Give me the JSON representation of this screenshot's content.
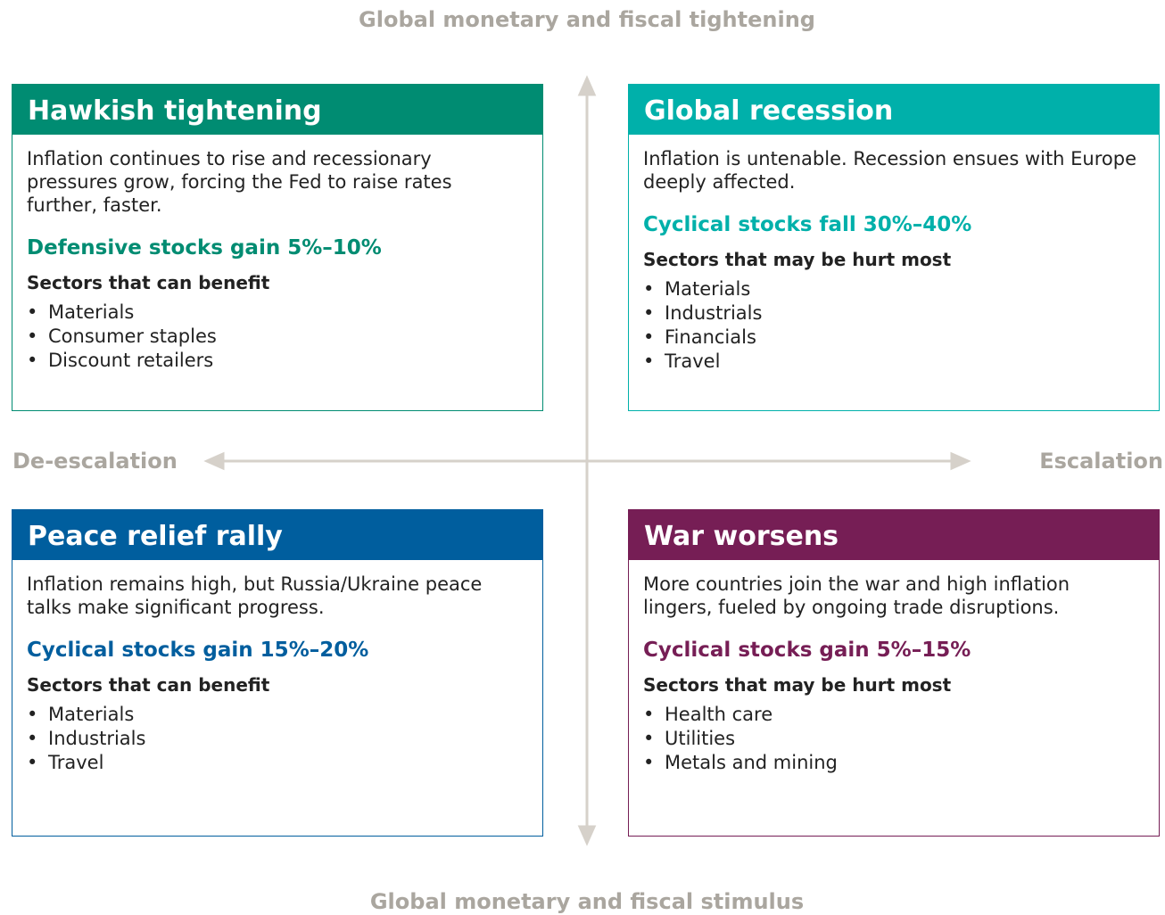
{
  "axes": {
    "top": "Global monetary and fiscal tightening",
    "bottom": "Global monetary and fiscal stimulus",
    "left": "De-escalation",
    "right": "Escalation"
  },
  "quadrants": [
    {
      "title": "Hawkish tightening",
      "description": "Inflation continues to rise and recessionary pressures grow, forcing the Fed to raise rates further, faster.",
      "outcome": "Defensive stocks gain 5%–10%",
      "sectors_label": "Sectors that can benefit",
      "sectors": [
        "Materials",
        "Consumer staples",
        "Discount retailers"
      ]
    },
    {
      "title": "Global recession",
      "description": "Inflation is untenable. Recession ensues with Europe deeply affected.",
      "outcome": "Cyclical stocks fall 30%–40%",
      "sectors_label": "Sectors that may be hurt most",
      "sectors": [
        "Materials",
        "Industrials",
        "Financials",
        "Travel"
      ]
    },
    {
      "title": "Peace relief rally",
      "description": "Inflation remains high, but Russia/Ukraine peace talks make significant progress.",
      "outcome": "Cyclical stocks gain 15%–20%",
      "sectors_label": "Sectors that can benefit",
      "sectors": [
        "Materials",
        "Industrials",
        "Travel"
      ]
    },
    {
      "title": "War worsens",
      "description": "More countries join the war and high inflation lingers, fueled by ongoing trade disruptions.",
      "outcome": "Cyclical stocks gain 5%–15%",
      "sectors_label": "Sectors that may be hurt most",
      "sectors": [
        "Health care",
        "Utilities",
        "Metals and mining"
      ]
    }
  ]
}
